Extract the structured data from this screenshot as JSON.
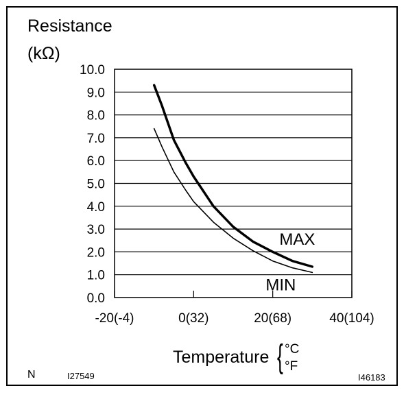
{
  "chart_data": {
    "type": "line",
    "ylabel_lines": [
      "Resistance",
      "(kΩ)"
    ],
    "xlabel": "Temperature",
    "xunits": [
      "°C",
      "°F"
    ],
    "xlim": [
      -20,
      40
    ],
    "ylim": [
      0,
      10
    ],
    "x_tick_values": [
      -20,
      0,
      20,
      40
    ],
    "x_tick_labels": [
      "-20(-4)",
      "0(32)",
      "20(68)",
      "40(104)"
    ],
    "y_tick_values": [
      0,
      1,
      2,
      3,
      4,
      5,
      6,
      7,
      8,
      9,
      10
    ],
    "y_tick_labels": [
      "0.0",
      "1.0",
      "2.0",
      "3.0",
      "4.0",
      "5.0",
      "6.0",
      "7.0",
      "8.0",
      "9.0",
      "10.0"
    ],
    "grid": "horizontal",
    "series": [
      {
        "name": "MAX",
        "x": [
          -10,
          -8,
          -5,
          -2,
          0,
          5,
          10,
          15,
          20,
          25,
          30
        ],
        "y": [
          9.3,
          8.4,
          6.9,
          5.9,
          5.3,
          4.0,
          3.1,
          2.45,
          2.0,
          1.6,
          1.35
        ]
      },
      {
        "name": "MIN",
        "x": [
          -10,
          -8,
          -5,
          -2,
          0,
          5,
          10,
          15,
          20,
          25,
          30
        ],
        "y": [
          7.4,
          6.6,
          5.5,
          4.7,
          4.2,
          3.3,
          2.6,
          2.05,
          1.6,
          1.3,
          1.1
        ]
      }
    ]
  },
  "footer": {
    "corner_left": "N",
    "ref_left": "I27549",
    "ref_right": "I46183"
  }
}
